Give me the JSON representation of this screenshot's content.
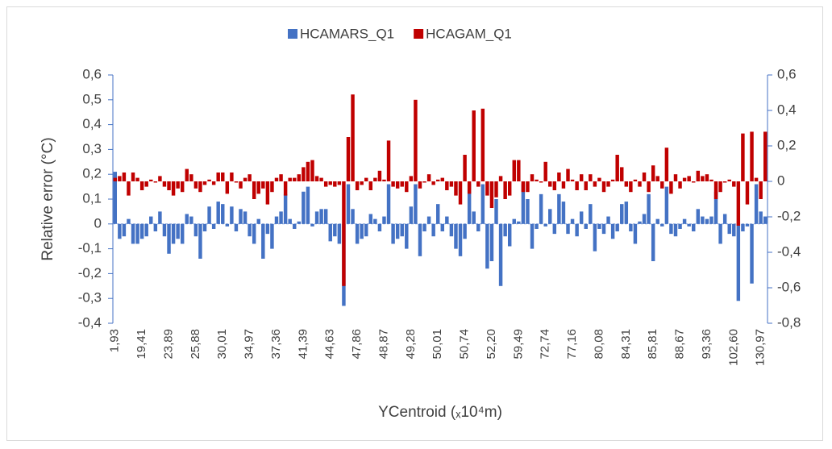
{
  "chart_data": {
    "type": "bar",
    "y_label": "Relative error (°C)",
    "x_label": "YCentroid (ₓ10⁴m)",
    "categories": [
      "1,93",
      null,
      null,
      null,
      null,
      null,
      "19,41",
      null,
      null,
      null,
      null,
      null,
      "23,89",
      null,
      null,
      null,
      null,
      null,
      "25,88",
      null,
      null,
      null,
      null,
      null,
      "30,01",
      null,
      null,
      null,
      null,
      null,
      "34,97",
      null,
      null,
      null,
      null,
      null,
      "37,36",
      null,
      null,
      null,
      null,
      null,
      "41,39",
      null,
      null,
      null,
      null,
      null,
      "44,63",
      null,
      null,
      null,
      null,
      null,
      "47,86",
      null,
      null,
      null,
      null,
      null,
      "48,87",
      null,
      null,
      null,
      null,
      null,
      "49,28",
      null,
      null,
      null,
      null,
      null,
      "50,01",
      null,
      null,
      null,
      null,
      null,
      "50,74",
      null,
      null,
      null,
      null,
      null,
      "52,20",
      null,
      null,
      null,
      null,
      null,
      "59,49",
      null,
      null,
      null,
      null,
      null,
      "72,74",
      null,
      null,
      null,
      null,
      null,
      "77,16",
      null,
      null,
      null,
      null,
      null,
      "80,08",
      null,
      null,
      null,
      null,
      null,
      "84,31",
      null,
      null,
      null,
      null,
      null,
      "85,81",
      null,
      null,
      null,
      null,
      null,
      "88,67",
      null,
      null,
      null,
      null,
      null,
      "93,36",
      null,
      null,
      null,
      null,
      null,
      "102,60",
      null,
      null,
      null,
      null,
      null,
      "130,97",
      null
    ],
    "series": [
      {
        "name": "HCAMARS_Q1",
        "color": "#4472c4",
        "axis": "y",
        "values": [
          0.21,
          -0.06,
          -0.05,
          0.02,
          -0.08,
          -0.08,
          -0.06,
          -0.05,
          0.03,
          -0.03,
          0.05,
          -0.05,
          -0.12,
          -0.08,
          -0.06,
          -0.08,
          0.04,
          0.03,
          -0.05,
          -0.14,
          -0.03,
          0.07,
          -0.02,
          0.09,
          0.08,
          -0.01,
          0.07,
          -0.03,
          0.06,
          0.05,
          -0.05,
          -0.08,
          0.02,
          -0.14,
          -0.04,
          -0.1,
          0.03,
          0.05,
          0.12,
          0.02,
          -0.02,
          0.01,
          0.13,
          0.15,
          -0.01,
          0.05,
          0.06,
          0.06,
          -0.07,
          -0.05,
          -0.08,
          -0.33,
          0.16,
          0.06,
          -0.08,
          -0.06,
          -0.05,
          0.04,
          0.02,
          -0.03,
          0.03,
          0.16,
          -0.08,
          -0.06,
          -0.05,
          -0.1,
          0.07,
          0.16,
          -0.13,
          -0.03,
          0.03,
          -0.05,
          0.08,
          -0.03,
          0.03,
          -0.05,
          -0.1,
          -0.13,
          -0.06,
          0.16,
          0.05,
          -0.03,
          0.16,
          -0.18,
          -0.15,
          0.1,
          -0.25,
          -0.05,
          -0.09,
          0.02,
          0.01,
          0.16,
          0.1,
          -0.1,
          -0.02,
          0.12,
          -0.01,
          0.06,
          -0.04,
          0.12,
          0.09,
          -0.04,
          0.02,
          -0.05,
          0.05,
          -0.02,
          0.08,
          -0.11,
          -0.02,
          -0.04,
          0.03,
          -0.06,
          -0.03,
          0.08,
          0.09,
          -0.03,
          -0.08,
          0.01,
          0.04,
          0.12,
          -0.15,
          0.02,
          -0.01,
          0.15,
          -0.04,
          -0.05,
          -0.02,
          0.02,
          -0.01,
          -0.03,
          0.06,
          0.03,
          0.02,
          0.03,
          0.13,
          -0.08,
          0.04,
          -0.04,
          -0.05,
          -0.31,
          -0.03,
          -0.01,
          -0.24,
          0.16,
          0.05,
          0.03
        ]
      },
      {
        "name": "HCAGAM_Q1",
        "color": "#c00000",
        "axis": "y2",
        "values": [
          0.02,
          0.03,
          0.05,
          -0.08,
          0.05,
          0.02,
          -0.05,
          -0.03,
          0.01,
          0.0,
          0.03,
          -0.03,
          -0.05,
          -0.08,
          -0.04,
          -0.06,
          0.07,
          0.04,
          -0.04,
          -0.06,
          -0.02,
          0.01,
          -0.02,
          0.05,
          0.05,
          -0.07,
          0.05,
          0.0,
          -0.04,
          0.02,
          0.04,
          -0.1,
          -0.07,
          -0.04,
          -0.13,
          -0.06,
          0.02,
          0.04,
          -0.08,
          0.02,
          0.02,
          0.04,
          0.08,
          0.11,
          0.12,
          0.03,
          0.02,
          -0.03,
          -0.02,
          -0.03,
          -0.02,
          -0.59,
          0.25,
          0.49,
          -0.05,
          -0.02,
          0.02,
          -0.05,
          0.02,
          0.06,
          0.01,
          0.23,
          -0.03,
          -0.04,
          -0.03,
          -0.06,
          0.03,
          0.46,
          -0.04,
          0.0,
          0.04,
          -0.02,
          0.01,
          0.02,
          -0.05,
          -0.03,
          -0.08,
          -0.13,
          0.15,
          -0.07,
          0.4,
          -0.03,
          0.41,
          -0.08,
          -0.15,
          -0.09,
          0.03,
          -0.1,
          -0.08,
          0.12,
          0.12,
          -0.06,
          -0.06,
          0.04,
          0.01,
          0.0,
          0.11,
          -0.03,
          -0.05,
          0.05,
          -0.04,
          0.07,
          0.01,
          -0.05,
          0.04,
          -0.05,
          0.04,
          -0.03,
          0.02,
          -0.06,
          -0.03,
          0.01,
          0.15,
          0.08,
          -0.03,
          -0.06,
          0.01,
          -0.03,
          0.05,
          -0.06,
          0.09,
          0.03,
          -0.04,
          0.19,
          -0.07,
          0.04,
          -0.04,
          0.02,
          0.03,
          0.0,
          0.06,
          0.03,
          0.04,
          0.01,
          -0.1,
          -0.06,
          0.0,
          0.01,
          -0.03,
          -0.25,
          0.27,
          -0.13,
          0.28,
          0.02,
          -0.1,
          0.28
        ]
      }
    ],
    "ylim": [
      -0.4,
      0.6
    ],
    "yticks": [
      {
        "value": -0.4,
        "label": "-0,4"
      },
      {
        "value": -0.3,
        "label": "-0,3"
      },
      {
        "value": -0.2,
        "label": "-0,2"
      },
      {
        "value": -0.1,
        "label": "-0,1"
      },
      0,
      {
        "value": 0.1,
        "label": "0,1"
      },
      {
        "value": 0.2,
        "label": "0,2"
      },
      {
        "value": 0.3,
        "label": "0,3"
      },
      {
        "value": 0.4,
        "label": "0,4"
      },
      {
        "value": 0.5,
        "label": "0,5"
      },
      {
        "value": 0.6,
        "label": "0,6"
      }
    ],
    "y2lim": [
      -0.8,
      0.6
    ],
    "y2ticks": [
      {
        "value": -0.8,
        "label": "-0,8"
      },
      {
        "value": -0.6,
        "label": "-0,6"
      },
      {
        "value": -0.4,
        "label": "-0,4"
      },
      {
        "value": -0.2,
        "label": "-0,2"
      },
      0,
      {
        "value": 0.2,
        "label": "0,2"
      },
      {
        "value": 0.4,
        "label": "0,4"
      },
      {
        "value": 0.6,
        "label": "0,6"
      }
    ],
    "legend": "top",
    "grid": false
  }
}
